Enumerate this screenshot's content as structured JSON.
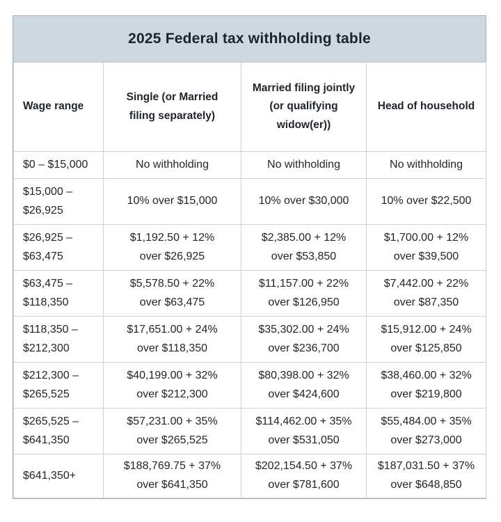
{
  "colors": {
    "title_bar_bg": "#cdd8e0",
    "cell_bg": "#ffffff",
    "border": "#ccd1d5",
    "outer_border": "#a9b0b6",
    "text": "#20252b"
  },
  "chart_data": {
    "type": "table",
    "title": "2025 Federal tax withholding table",
    "columns": [
      "Wage range",
      "Single (or Married\nfiling separately)",
      "Married filing jointly\n(or qualifying\nwidow(er))",
      "Head of household"
    ],
    "rows": [
      [
        "$0 – $15,000",
        "No withholding",
        "No withholding",
        "No withholding"
      ],
      [
        "$15,000 –\n$26,925",
        "10% over $15,000",
        "10% over $30,000",
        "10% over $22,500"
      ],
      [
        "$26,925 –\n$63,475",
        "$1,192.50 + 12%\nover $26,925",
        "$2,385.00 + 12%\nover $53,850",
        "$1,700.00 + 12%\nover $39,500"
      ],
      [
        "$63,475 –\n$118,350",
        "$5,578.50 + 22%\nover $63,475",
        "$11,157.00 + 22%\nover $126,950",
        "$7,442.00 + 22%\nover $87,350"
      ],
      [
        "$118,350 –\n$212,300",
        "$17,651.00 + 24%\nover $118,350",
        "$35,302.00 + 24%\nover $236,700",
        "$15,912.00 + 24%\nover $125,850"
      ],
      [
        "$212,300 –\n$265,525",
        "$40,199.00 + 32%\nover $212,300",
        "$80,398.00 + 32%\nover $424,600",
        "$38,460.00 + 32%\nover $219,800"
      ],
      [
        "$265,525 –\n$641,350",
        "$57,231.00 + 35%\nover $265,525",
        "$114,462.00 + 35%\nover $531,050",
        "$55,484.00 + 35%\nover $273,000"
      ],
      [
        "$641,350+",
        "$188,769.75 + 37%\nover $641,350",
        "$202,154.50 + 37%\nover $781,600",
        "$187,031.50 + 37%\nover $648,850"
      ]
    ]
  }
}
